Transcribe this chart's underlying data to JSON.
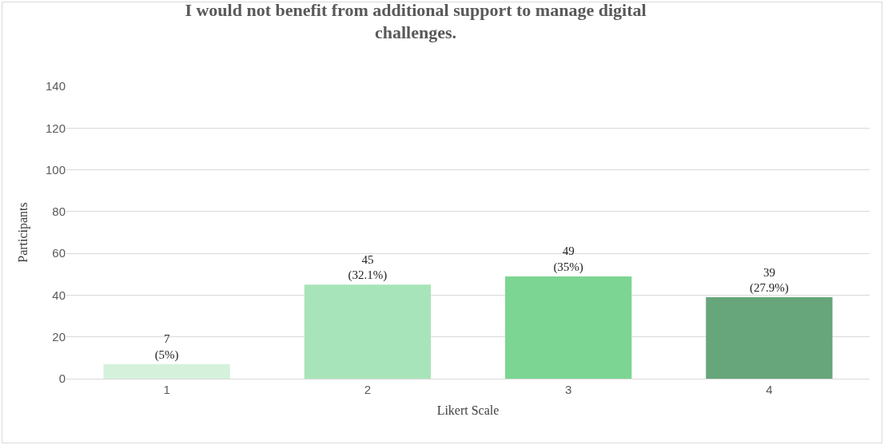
{
  "chart_data": {
    "type": "bar",
    "title": "I would not benefit from additional support to manage digital\nchallenges.",
    "xlabel": "Likert Scale",
    "ylabel": "Participants",
    "categories": [
      "1",
      "2",
      "3",
      "4"
    ],
    "values": [
      7,
      45,
      49,
      39
    ],
    "colors": [
      "#d5f1dc",
      "#a8e4b9",
      "#7cd592",
      "#66a67a"
    ],
    "value_labels": [
      "7\n(5%)",
      "45\n(32.1%)",
      "49\n(35%)",
      "39\n(27.9%)"
    ],
    "ylim": [
      0,
      140
    ],
    "yticks": [
      0,
      20,
      40,
      60,
      80,
      100,
      120,
      140
    ],
    "grid": "y",
    "legend": false
  }
}
